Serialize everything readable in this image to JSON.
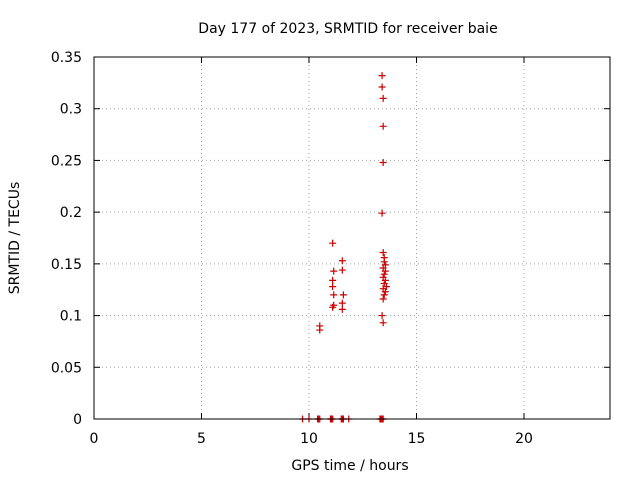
{
  "chart_data": {
    "type": "scatter",
    "title": "Day 177 of 2023, SRMTID for receiver baie",
    "xlabel": "GPS time / hours",
    "ylabel": "SRMTID / TECUs",
    "xlim": [
      0,
      24
    ],
    "ylim": [
      0,
      0.35
    ],
    "x_ticks": [
      0,
      5,
      10,
      15,
      20
    ],
    "x_tick_labels": [
      "0",
      "5",
      "10",
      "15",
      "20"
    ],
    "y_ticks": [
      0,
      0.05,
      0.1,
      0.15,
      0.2,
      0.25,
      0.3,
      0.35
    ],
    "y_tick_labels": [
      "0",
      "0.05",
      "0.1",
      "0.15",
      "0.2",
      "0.25",
      "0.3",
      "0.35"
    ],
    "grid": true,
    "marker": "+",
    "series": [
      {
        "name": "SRMTID",
        "color": "#cc0000",
        "points": [
          [
            9.7,
            0
          ],
          [
            10.0,
            0
          ],
          [
            10.4,
            0
          ],
          [
            10.45,
            0
          ],
          [
            10.5,
            0
          ],
          [
            11.0,
            0
          ],
          [
            11.05,
            0
          ],
          [
            11.1,
            0
          ],
          [
            11.5,
            0
          ],
          [
            11.55,
            0
          ],
          [
            11.6,
            0
          ],
          [
            11.85,
            0
          ],
          [
            13.3,
            0
          ],
          [
            13.35,
            0
          ],
          [
            13.4,
            0
          ],
          [
            13.45,
            0
          ],
          [
            10.5,
            0.086
          ],
          [
            10.5,
            0.09
          ],
          [
            11.1,
            0.17
          ],
          [
            11.15,
            0.143
          ],
          [
            11.1,
            0.134
          ],
          [
            11.1,
            0.128
          ],
          [
            11.15,
            0.12
          ],
          [
            11.15,
            0.11
          ],
          [
            11.1,
            0.108
          ],
          [
            11.55,
            0.153
          ],
          [
            11.55,
            0.144
          ],
          [
            11.6,
            0.12
          ],
          [
            11.55,
            0.112
          ],
          [
            11.55,
            0.106
          ],
          [
            13.4,
            0.332
          ],
          [
            13.4,
            0.321
          ],
          [
            13.45,
            0.31
          ],
          [
            13.45,
            0.283
          ],
          [
            13.45,
            0.248
          ],
          [
            13.4,
            0.199
          ],
          [
            13.45,
            0.161
          ],
          [
            13.5,
            0.156
          ],
          [
            13.5,
            0.152
          ],
          [
            13.55,
            0.149
          ],
          [
            13.45,
            0.146
          ],
          [
            13.55,
            0.143
          ],
          [
            13.5,
            0.14
          ],
          [
            13.45,
            0.137
          ],
          [
            13.55,
            0.134
          ],
          [
            13.5,
            0.131
          ],
          [
            13.6,
            0.128
          ],
          [
            13.45,
            0.126
          ],
          [
            13.55,
            0.123
          ],
          [
            13.5,
            0.12
          ],
          [
            13.45,
            0.116
          ],
          [
            13.4,
            0.1
          ],
          [
            13.45,
            0.093
          ]
        ]
      }
    ]
  }
}
